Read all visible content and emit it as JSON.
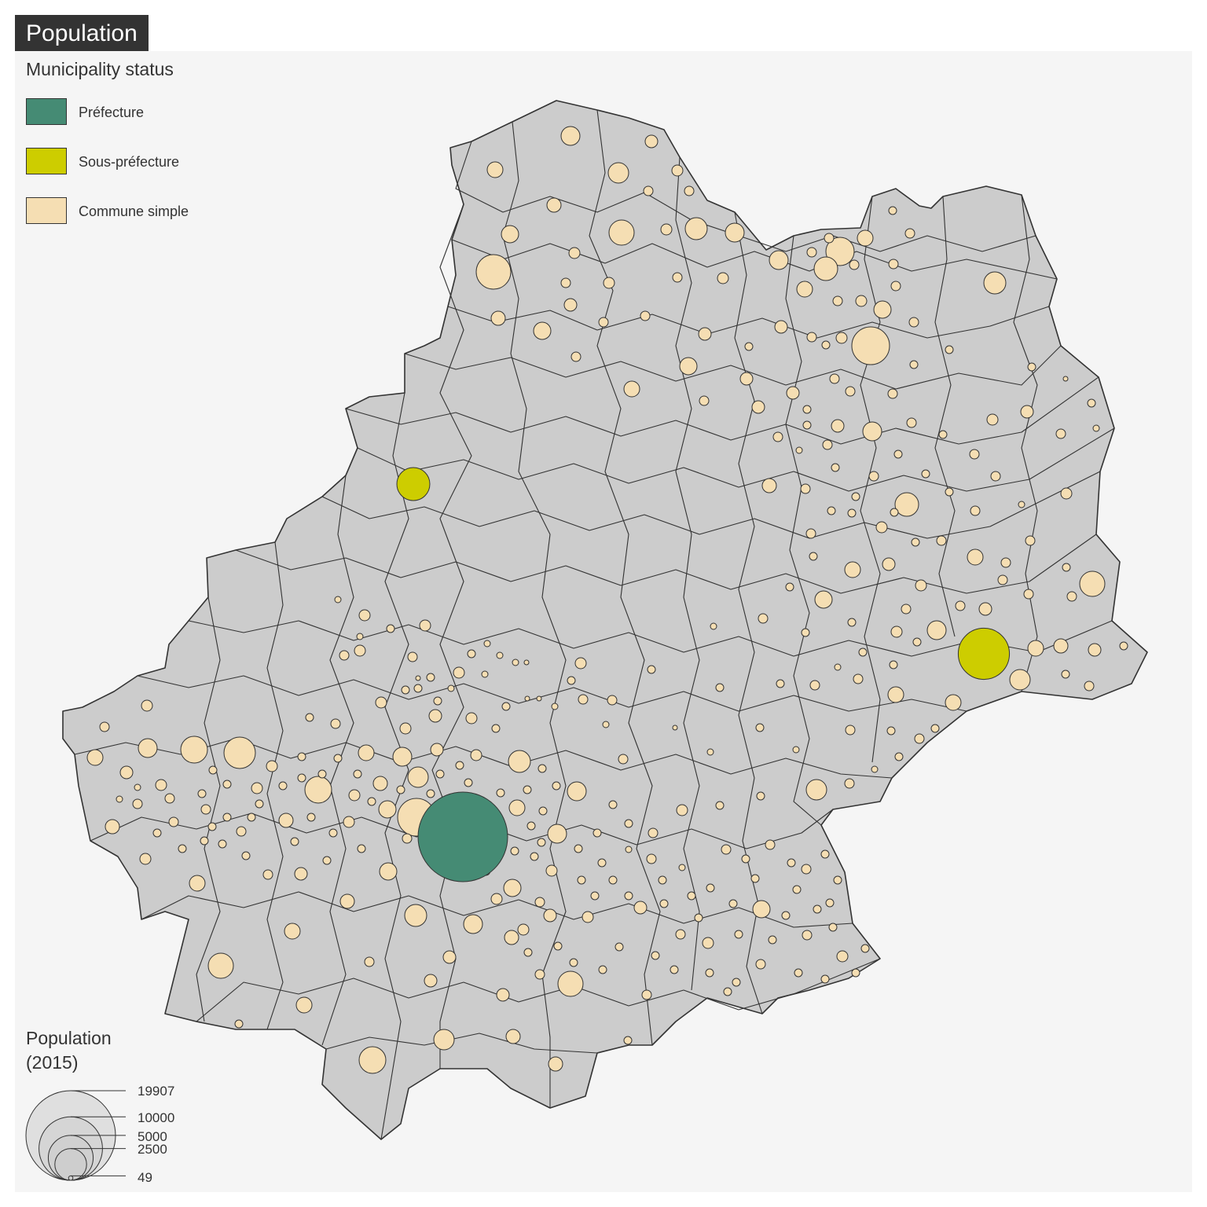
{
  "title": "Population",
  "status_legend": {
    "title": "Municipality status",
    "items": [
      {
        "label": "Préfecture",
        "color": "#458B74"
      },
      {
        "label": "Sous-préfecture",
        "color": "#CDCD00"
      },
      {
        "label": "Commune simple",
        "color": "#F5DEB3"
      }
    ]
  },
  "size_legend": {
    "title_line1": "Population",
    "title_line2": "(2015)",
    "values": [
      19907,
      10000,
      5000,
      2500,
      49
    ],
    "labels": [
      "19907",
      "10000",
      "5000",
      "2500",
      "49"
    ]
  },
  "colors": {
    "background": "#f5f5f5",
    "territory": "#cccccc",
    "border": "#333333",
    "title_bg": "#333333"
  },
  "map": {
    "prefecture": {
      "population": 19907
    },
    "sous_prefectures": [
      {
        "population": 2700
      },
      {
        "population": 6500
      }
    ]
  }
}
